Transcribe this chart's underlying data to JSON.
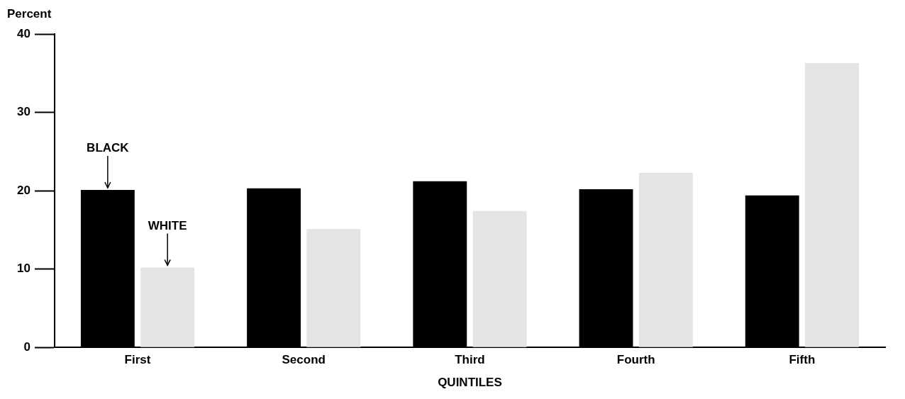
{
  "chart_data": {
    "type": "bar",
    "ylabel": "Percent",
    "xlabel": "QUINTILES",
    "categories": [
      "First",
      "Second",
      "Third",
      "Fourth",
      "Fifth"
    ],
    "series": [
      {
        "name": "BLACK",
        "color": "#000000",
        "values": [
          20.1,
          20.3,
          21.2,
          20.2,
          19.4
        ]
      },
      {
        "name": "WHITE",
        "color": "#e4e4e4",
        "values": [
          10.2,
          15.1,
          17.4,
          22.3,
          36.3
        ]
      }
    ],
    "ylim": [
      0,
      40
    ],
    "yticks": [
      0,
      10,
      20,
      30,
      40
    ],
    "grid": false,
    "legend": false
  }
}
